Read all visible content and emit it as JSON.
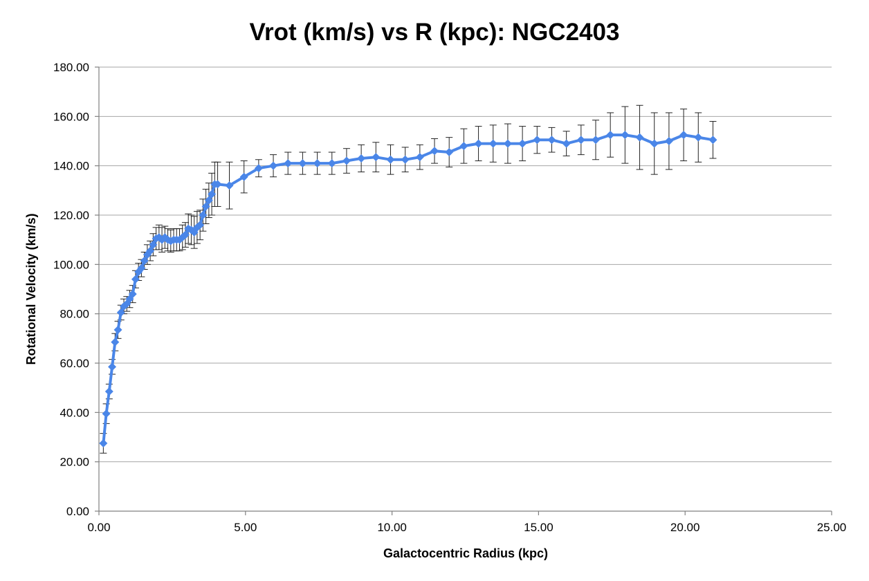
{
  "chart_data": {
    "type": "line",
    "title": "Vrot (km/s) vs R (kpc): NGC2403",
    "xlabel": "Galactocentric Radius (kpc)",
    "ylabel": "Rotational Velocity (km/s)",
    "xlim": [
      0,
      25
    ],
    "ylim": [
      0,
      180
    ],
    "xticks": [
      "0.00",
      "5.00",
      "10.00",
      "15.00",
      "20.00",
      "25.00"
    ],
    "yticks": [
      "0.00",
      "20.00",
      "40.00",
      "60.00",
      "80.00",
      "100.00",
      "120.00",
      "140.00",
      "160.00",
      "180.00"
    ],
    "grid": true,
    "legend": "none",
    "series_color": "#4a86e8",
    "series": [
      {
        "marker": "diamond",
        "x": [
          0.15,
          0.25,
          0.35,
          0.45,
          0.55,
          0.65,
          0.75,
          0.85,
          0.95,
          1.05,
          1.15,
          1.25,
          1.35,
          1.45,
          1.55,
          1.65,
          1.75,
          1.85,
          1.95,
          2.05,
          2.15,
          2.25,
          2.35,
          2.45,
          2.55,
          2.65,
          2.75,
          2.85,
          2.95,
          3.05,
          3.15,
          3.25,
          3.35,
          3.45,
          3.55,
          3.65,
          3.75,
          3.85,
          3.95,
          4.05,
          4.45,
          4.95,
          5.45,
          5.95,
          6.45,
          6.95,
          7.45,
          7.95,
          8.45,
          8.95,
          9.45,
          9.95,
          10.45,
          10.95,
          11.45,
          11.95,
          12.45,
          12.95,
          13.45,
          13.95,
          14.45,
          14.95,
          15.45,
          15.95,
          16.45,
          16.95,
          17.45,
          17.95,
          18.45,
          18.95,
          19.45,
          19.95,
          20.45,
          20.95
        ],
        "y": [
          27.5,
          39.5,
          48.5,
          58.5,
          68.5,
          73.5,
          80.5,
          83.0,
          84.0,
          86.0,
          88.0,
          94.0,
          97.0,
          98.5,
          101.5,
          104.0,
          105.5,
          108.0,
          110.5,
          111.0,
          110.0,
          111.0,
          110.0,
          109.5,
          110.0,
          110.0,
          110.0,
          111.0,
          112.0,
          114.5,
          114.0,
          113.0,
          115.0,
          116.0,
          120.0,
          123.5,
          126.0,
          128.5,
          132.5,
          132.5,
          132.0,
          135.5,
          139.0,
          140.0,
          141.0,
          141.0,
          141.0,
          141.0,
          142.0,
          143.0,
          143.5,
          142.5,
          142.5,
          143.5,
          146.0,
          145.5,
          148.0,
          149.0,
          149.0,
          149.0,
          149.0,
          150.5,
          150.5,
          149.0,
          150.5,
          150.5,
          152.5,
          152.5,
          151.5,
          149.0,
          150.0,
          152.5,
          151.5,
          150.5
        ],
        "error": [
          4.0,
          4.0,
          3.0,
          3.0,
          3.5,
          3.5,
          3.0,
          3.0,
          3.0,
          3.5,
          3.5,
          3.5,
          3.5,
          3.5,
          3.5,
          4.0,
          4.0,
          4.5,
          4.5,
          5.0,
          5.0,
          4.5,
          4.5,
          4.5,
          4.5,
          4.5,
          4.5,
          5.0,
          5.0,
          6.0,
          6.0,
          6.5,
          6.5,
          6.0,
          6.5,
          7.0,
          7.0,
          8.5,
          9.0,
          9.0,
          9.5,
          6.5,
          3.5,
          4.5,
          4.5,
          4.5,
          4.5,
          4.5,
          5.0,
          5.5,
          6.0,
          6.0,
          5.0,
          5.0,
          5.0,
          6.0,
          7.0,
          7.0,
          7.5,
          8.0,
          7.0,
          5.5,
          5.0,
          5.0,
          6.0,
          8.0,
          9.0,
          11.5,
          13.0,
          12.5,
          11.5,
          10.5,
          10.0,
          7.5
        ]
      }
    ]
  }
}
